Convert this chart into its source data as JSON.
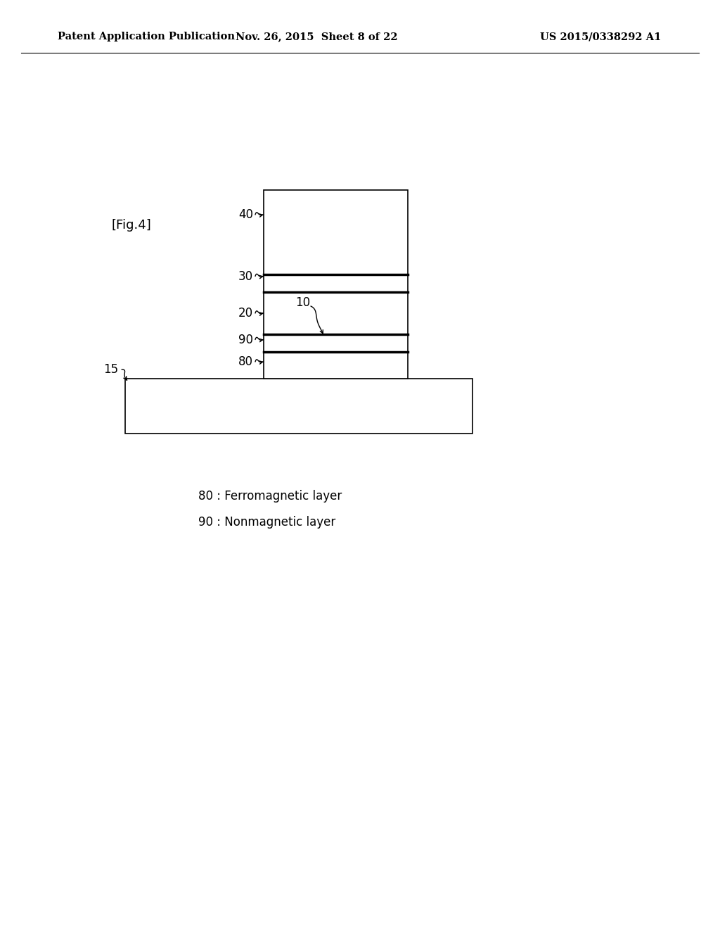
{
  "background_color": "#ffffff",
  "header_left": "Patent Application Publication",
  "header_center": "Nov. 26, 2015  Sheet 8 of 22",
  "header_right": "US 2015/0338292 A1",
  "fig_label": "[Fig.4]",
  "header_fontsize": 10.5,
  "fig_label_fontsize": 13,
  "annotation_fontsize": 12,
  "legend_fontsize": 12,
  "legend_lines": [
    "80 : Ferromagnetic layer",
    "90 : Nonmagnetic layer"
  ]
}
